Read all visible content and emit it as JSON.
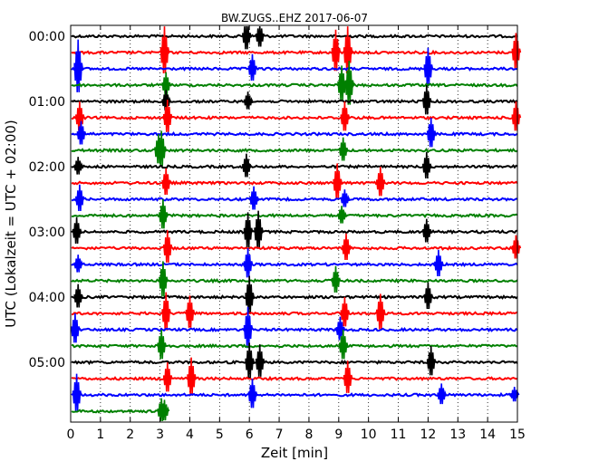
{
  "chart_data": {
    "type": "line",
    "title": "BW.ZUGS..EHZ 2017-06-07",
    "xlabel": "Zeit  [min]",
    "ylabel": "UTC (Lokalzeit = UTC + 02:00)",
    "xlim": [
      0,
      15
    ],
    "x_ticks": [
      "0",
      "1",
      "2",
      "3",
      "4",
      "5",
      "6",
      "7",
      "8",
      "9",
      "10",
      "11",
      "12",
      "13",
      "14",
      "15"
    ],
    "y_ticks": [
      "00:00",
      "01:00",
      "02:00",
      "03:00",
      "04:00",
      "05:00"
    ],
    "grid": true,
    "trace_colors": [
      "#000000",
      "#ff0000",
      "#0000ff",
      "#008000"
    ],
    "rows_per_hour": 4,
    "rows": [
      {
        "label_hour": "00:00",
        "color": "black",
        "end_min": 15,
        "spikes": [
          [
            5.9,
            1.0
          ],
          [
            6.35,
            0.8
          ]
        ]
      },
      {
        "color": "red",
        "end_min": 15,
        "spikes": [
          [
            3.15,
            1.6
          ],
          [
            8.9,
            1.4
          ],
          [
            9.3,
            1.6
          ],
          [
            14.95,
            1.2
          ]
        ]
      },
      {
        "color": "blue",
        "end_min": 15,
        "spikes": [
          [
            0.25,
            1.8
          ],
          [
            6.1,
            0.9
          ],
          [
            12.0,
            1.3
          ]
        ]
      },
      {
        "color": "green",
        "end_min": 15,
        "spikes": [
          [
            3.2,
            0.8
          ],
          [
            9.1,
            1.2
          ],
          [
            9.35,
            1.5
          ]
        ]
      },
      {
        "label_hour": "01:00",
        "color": "black",
        "end_min": 15,
        "spikes": [
          [
            3.2,
            0.7
          ],
          [
            5.95,
            0.6
          ],
          [
            11.95,
            1.0
          ]
        ]
      },
      {
        "color": "red",
        "end_min": 15,
        "spikes": [
          [
            0.3,
            1.0
          ],
          [
            3.25,
            1.1
          ],
          [
            9.2,
            1.0
          ],
          [
            14.95,
            1.0
          ]
        ]
      },
      {
        "color": "blue",
        "end_min": 15,
        "spikes": [
          [
            0.35,
            0.8
          ],
          [
            12.1,
            1.0
          ]
        ]
      },
      {
        "color": "green",
        "end_min": 15,
        "spikes": [
          [
            2.95,
            1.0
          ],
          [
            3.05,
            1.2
          ],
          [
            9.15,
            0.8
          ]
        ]
      },
      {
        "label_hour": "02:00",
        "color": "black",
        "end_min": 15,
        "spikes": [
          [
            0.25,
            0.6
          ],
          [
            5.9,
            0.8
          ],
          [
            11.95,
            0.9
          ]
        ]
      },
      {
        "color": "red",
        "end_min": 15,
        "spikes": [
          [
            3.2,
            0.9
          ],
          [
            8.95,
            1.2
          ],
          [
            10.4,
            1.0
          ]
        ]
      },
      {
        "color": "blue",
        "end_min": 15,
        "spikes": [
          [
            0.3,
            0.9
          ],
          [
            6.15,
            0.8
          ],
          [
            9.2,
            0.6
          ]
        ]
      },
      {
        "color": "green",
        "end_min": 15,
        "spikes": [
          [
            3.1,
            1.0
          ],
          [
            9.1,
            0.6
          ]
        ]
      },
      {
        "label_hour": "03:00",
        "color": "black",
        "end_min": 15,
        "spikes": [
          [
            0.2,
            0.9
          ],
          [
            5.95,
            1.2
          ],
          [
            6.3,
            1.3
          ],
          [
            11.95,
            0.8
          ]
        ]
      },
      {
        "color": "red",
        "end_min": 15,
        "spikes": [
          [
            3.25,
            1.1
          ],
          [
            9.25,
            0.9
          ],
          [
            14.95,
            0.8
          ]
        ]
      },
      {
        "color": "blue",
        "end_min": 15,
        "spikes": [
          [
            0.25,
            0.6
          ],
          [
            5.95,
            1.0
          ],
          [
            12.35,
            0.9
          ]
        ]
      },
      {
        "color": "green",
        "end_min": 15,
        "spikes": [
          [
            3.1,
            1.2
          ],
          [
            8.9,
            0.9
          ]
        ]
      },
      {
        "label_hour": "04:00",
        "color": "black",
        "end_min": 15,
        "spikes": [
          [
            0.25,
            0.8
          ],
          [
            6.0,
            1.3
          ],
          [
            12.0,
            0.9
          ]
        ]
      },
      {
        "color": "red",
        "end_min": 15,
        "spikes": [
          [
            3.2,
            1.3
          ],
          [
            4.0,
            1.1
          ],
          [
            9.2,
            1.0
          ],
          [
            10.4,
            1.2
          ]
        ]
      },
      {
        "color": "blue",
        "end_min": 15,
        "spikes": [
          [
            0.15,
            1.0
          ],
          [
            5.95,
            1.4
          ],
          [
            9.05,
            0.8
          ]
        ]
      },
      {
        "color": "green",
        "end_min": 15,
        "spikes": [
          [
            3.05,
            1.0
          ],
          [
            9.15,
            1.0
          ]
        ]
      },
      {
        "label_hour": "05:00",
        "color": "black",
        "end_min": 15,
        "spikes": [
          [
            6.0,
            1.2
          ],
          [
            6.35,
            1.1
          ],
          [
            12.1,
            1.0
          ]
        ]
      },
      {
        "color": "red",
        "end_min": 15,
        "spikes": [
          [
            3.25,
            1.0
          ],
          [
            4.05,
            1.3
          ],
          [
            9.3,
            1.1
          ]
        ]
      },
      {
        "color": "blue",
        "end_min": 15,
        "spikes": [
          [
            0.2,
            1.3
          ],
          [
            6.1,
            1.0
          ],
          [
            12.45,
            0.7
          ],
          [
            14.9,
            0.5
          ]
        ]
      },
      {
        "color": "green",
        "end_min": 3.3,
        "spikes": [
          [
            3.05,
            0.8
          ],
          [
            3.15,
            0.7
          ]
        ]
      }
    ]
  }
}
